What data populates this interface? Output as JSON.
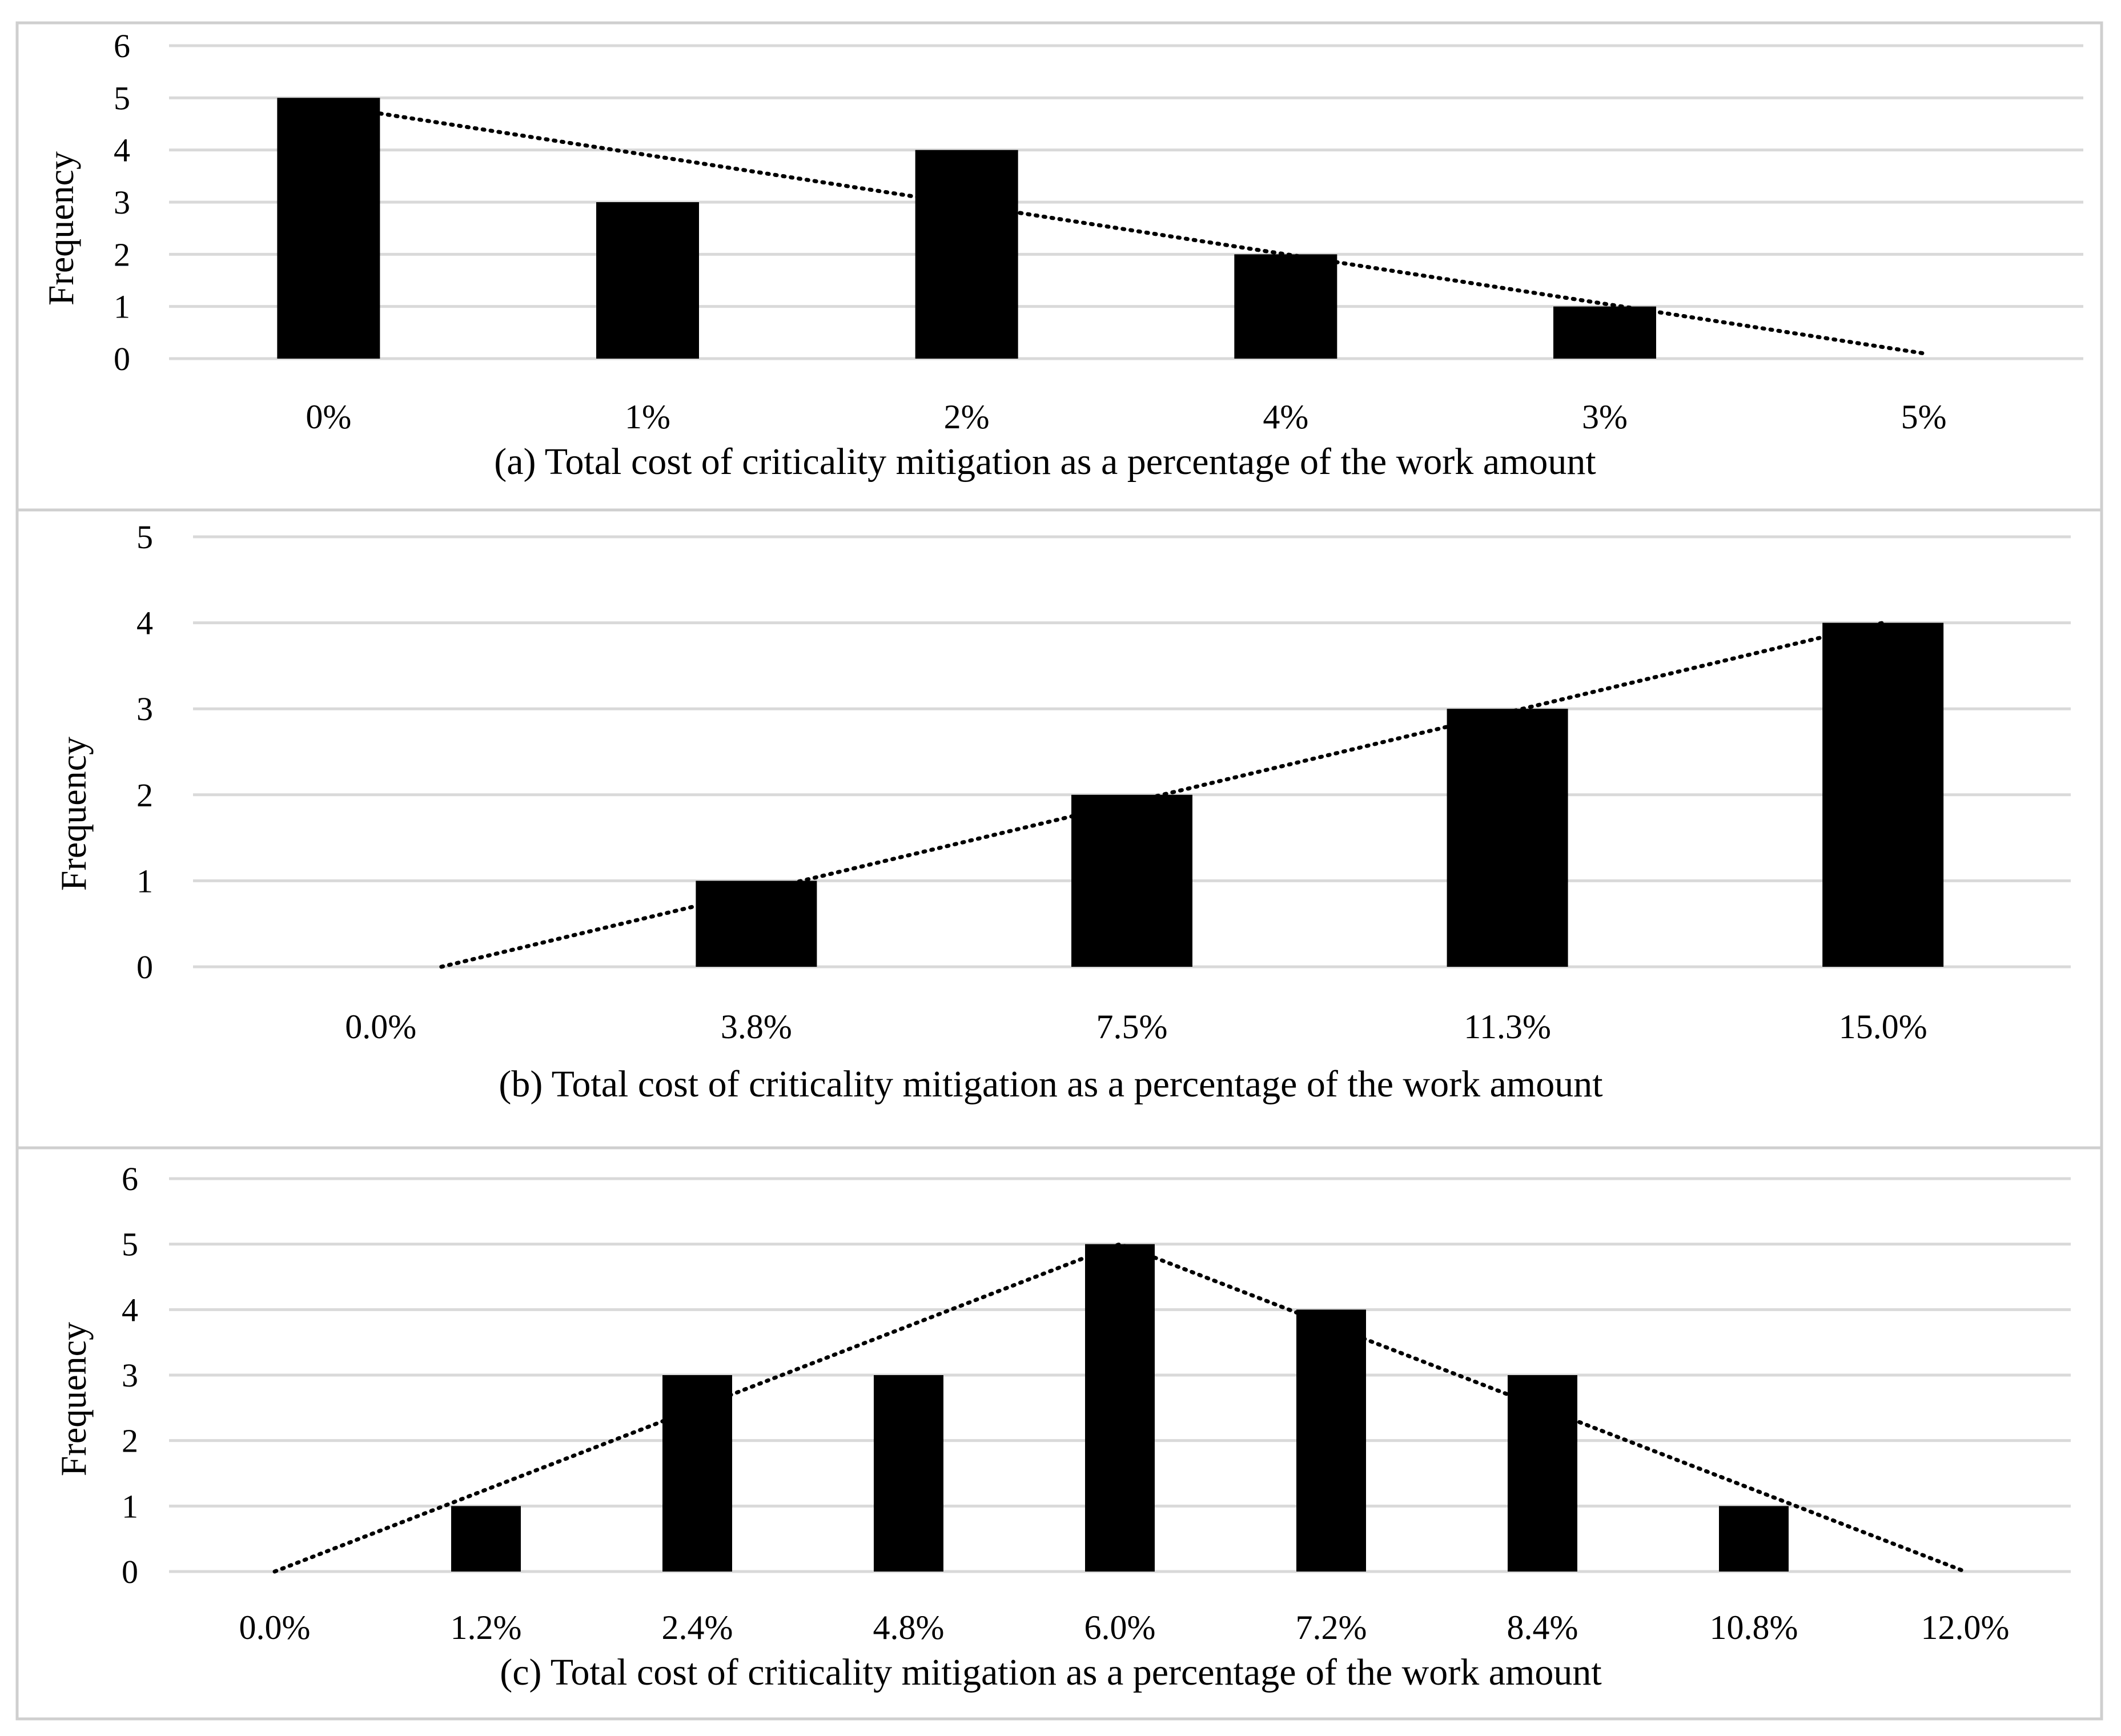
{
  "chart_data": [
    {
      "type": "bar",
      "ylabel": "Frequency",
      "xlabel": "(a) Total cost of criticality mitigation as a percentage of the work amount",
      "categories": [
        "0%",
        "1%",
        "2%",
        "4%",
        "3%",
        "5%"
      ],
      "values": [
        5,
        3,
        4,
        2,
        1,
        0
      ],
      "ylim": [
        0,
        6
      ],
      "yticks": [
        0,
        1,
        2,
        3,
        4,
        5,
        6
      ],
      "grid": true,
      "trendline": {
        "style": "dotted",
        "start": 4.7,
        "end": 0.1
      },
      "bar_color": "#000000"
    },
    {
      "type": "bar",
      "ylabel": "Frequency",
      "xlabel": "(b) Total cost of criticality mitigation as a percentage of the work amount",
      "categories": [
        "0.0%",
        "3.8%",
        "7.5%",
        "11.3%",
        "15.0%"
      ],
      "values": [
        0,
        1,
        2,
        3,
        4
      ],
      "ylim": [
        0,
        5
      ],
      "yticks": [
        0,
        1,
        2,
        3,
        4,
        5
      ],
      "grid": true,
      "trendline": {
        "style": "dotted",
        "start": 0,
        "end": 4
      },
      "bar_color": "#000000"
    },
    {
      "type": "bar",
      "ylabel": "Frequency",
      "xlabel": "(c) Total cost of criticality mitigation as a percentage of the work amount",
      "categories": [
        "0.0%",
        "1.2%",
        "2.4%",
        "4.8%",
        "6.0%",
        "7.2%",
        "8.4%",
        "10.8%",
        "12.0%"
      ],
      "values": [
        0,
        1,
        3,
        3,
        5,
        4,
        3,
        1,
        0
      ],
      "ylim": [
        0,
        6
      ],
      "yticks": [
        0,
        1,
        2,
        3,
        4,
        5,
        6
      ],
      "grid": true,
      "trendline": {
        "style": "dotted",
        "polyline": [
          0,
          5,
          0
        ],
        "peak_index": 4
      },
      "bar_color": "#000000"
    }
  ]
}
